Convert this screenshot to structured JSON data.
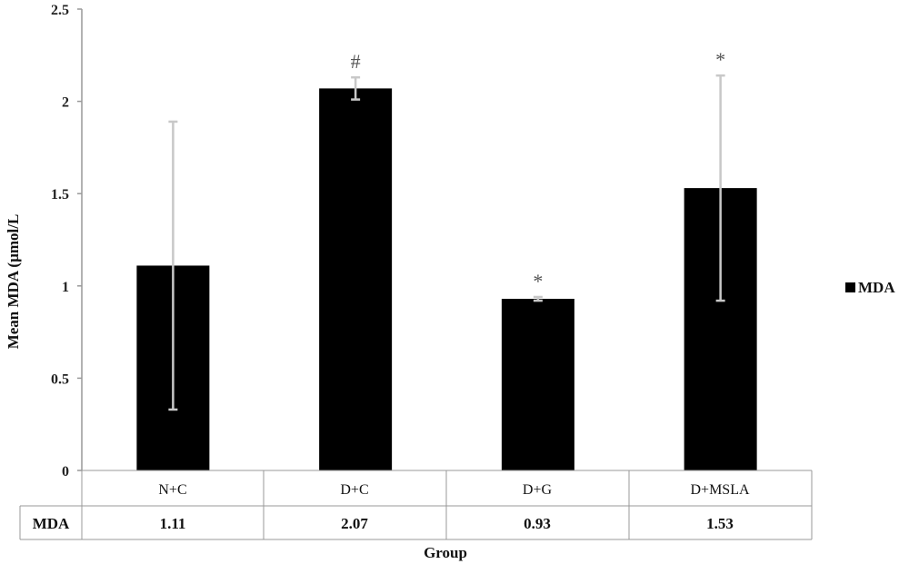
{
  "chart_data": {
    "type": "bar",
    "categories": [
      "N+C",
      "D+C",
      "D+G",
      "D+MSLA"
    ],
    "series": [
      {
        "name": "MDA",
        "values": [
          1.11,
          2.07,
          0.93,
          1.53
        ],
        "error": [
          0.78,
          0.06,
          0.01,
          0.61
        ],
        "annotations": [
          "",
          "#",
          "*",
          "*"
        ]
      }
    ],
    "ylabel": "Mean MDA (µmol/L",
    "xlabel": "Group",
    "ylim": [
      0,
      2.5
    ],
    "yticks": [
      "0",
      "0.5",
      "1",
      "1.5",
      "2",
      "2.5"
    ],
    "ytick_values": [
      0,
      0.5,
      1,
      1.5,
      2,
      2.5
    ],
    "data_table": {
      "row_header": "MDA",
      "cells": [
        "1.11",
        "2.07",
        "0.93",
        "1.53"
      ]
    },
    "legend": {
      "position": "right",
      "label": "MDA"
    },
    "grid": false,
    "colors": {
      "bar": "#000000",
      "error_bar": "#c8c8c8",
      "axis": "#999999",
      "annotation": "#555555"
    }
  }
}
